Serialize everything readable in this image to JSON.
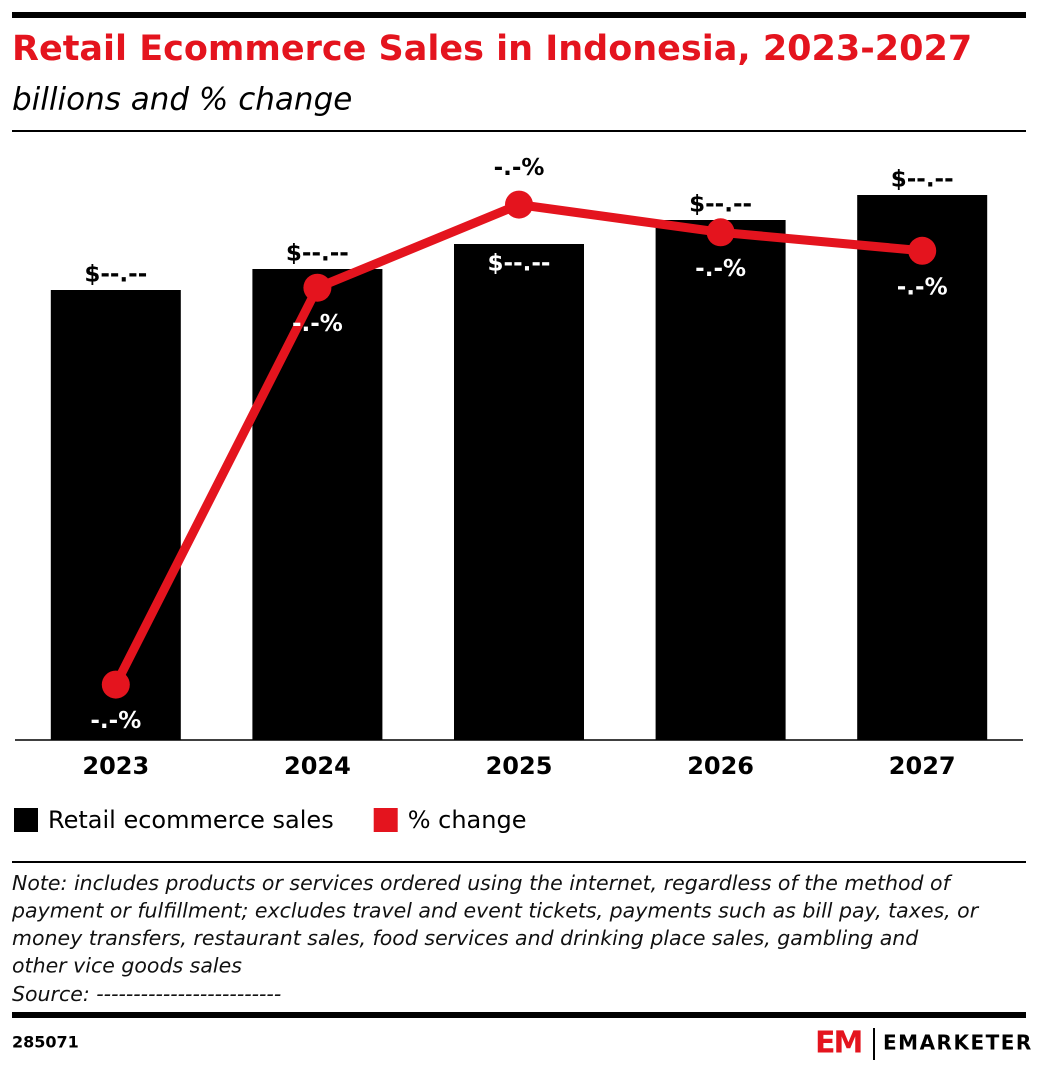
{
  "chart_data": {
    "type": "bar-line",
    "title": "Retail Ecommerce Sales in Indonesia, 2023-2027",
    "subtitle": "billions and % change",
    "categories": [
      "2023",
      "2024",
      "2025",
      "2026",
      "2027"
    ],
    "series": [
      {
        "name": "Retail ecommerce sales",
        "type": "bar",
        "color": "#000000",
        "values": [
          45.0,
          47.1,
          49.6,
          52.0,
          54.5
        ],
        "value_labels": [
          "$--.--",
          "$--.--",
          "$--.--",
          "$--.--",
          "$--.--"
        ]
      },
      {
        "name": "% change",
        "type": "line",
        "axis": "y2",
        "color": "#e4141e",
        "values": [
          0.6,
          4.9,
          5.8,
          5.5,
          5.3
        ],
        "value_labels": [
          "-.-%",
          "-.-%",
          "-.-%",
          "-.-%",
          "-.-%"
        ]
      }
    ],
    "ylim": [
      0,
      60
    ],
    "y2lim": [
      0,
      6.5
    ],
    "note": [
      "Note: includes products or services ordered using the internet, regardless of the method of",
      "payment or fulfillment; excludes travel and event tickets, payments such as bill pay, taxes, or",
      "money transfers, restaurant sales, food services and drinking place sales, gambling and",
      "other vice goods sales"
    ],
    "source": "Source: -------------------------",
    "chart_id": "285071",
    "logo_mark": "EM",
    "brand": "EMARKETER"
  }
}
